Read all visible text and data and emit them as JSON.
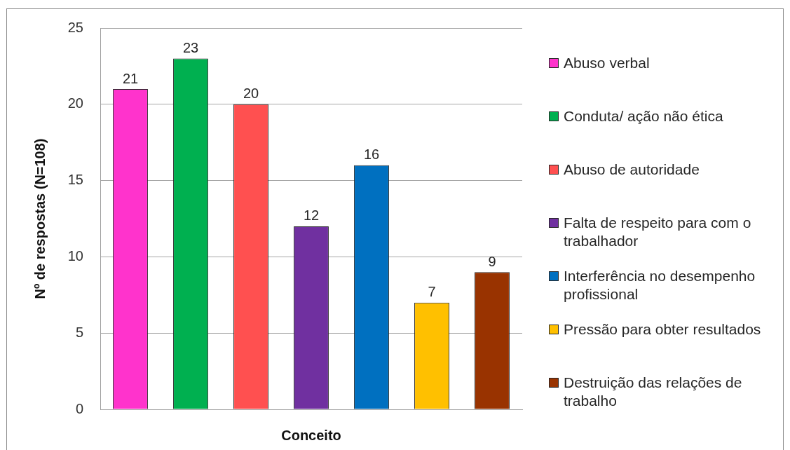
{
  "chart_data": {
    "type": "bar",
    "xlabel": "Conceito",
    "ylabel": "Nº de respostas (N=108)",
    "categories": [
      null
    ],
    "series": [
      {
        "name": "Abuso verbal",
        "color": "#ff33cc",
        "values": [
          21
        ]
      },
      {
        "name": "Conduta/ ação não ética",
        "color": "#00b050",
        "values": [
          23
        ]
      },
      {
        "name": "Abuso de autoridade",
        "color": "#ff5050",
        "values": [
          20
        ]
      },
      {
        "name": "Falta de respeito para com o trabalhador",
        "color": "#7030a0",
        "values": [
          12
        ]
      },
      {
        "name": "Interferência no desempenho profissional",
        "color": "#0070c0",
        "values": [
          16
        ]
      },
      {
        "name": "Pressão para obter resultados",
        "color": "#ffc000",
        "values": [
          7
        ]
      },
      {
        "name": "Destruição das relações de trabalho",
        "color": "#993300",
        "values": [
          9
        ]
      }
    ],
    "ylim": [
      0,
      25
    ],
    "yticks": [
      0,
      5,
      10,
      15,
      20,
      25
    ],
    "grid": "y",
    "legend": "right",
    "data_labels": true
  }
}
